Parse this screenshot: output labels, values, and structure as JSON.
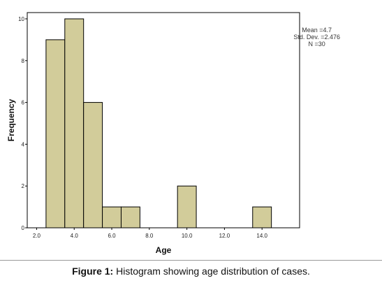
{
  "chart_data": {
    "type": "bar",
    "subtype": "histogram",
    "xlabel": "Age",
    "ylabel": "Frequency",
    "x_ticks": [
      "2.0",
      "4.0",
      "6.0",
      "8.0",
      "10.0",
      "12.0",
      "14.0"
    ],
    "y_ticks": [
      "0",
      "2",
      "4",
      "6",
      "8",
      "10"
    ],
    "xlim": [
      1.5,
      16.0
    ],
    "ylim": [
      0,
      10.3
    ],
    "bin_width": 1,
    "bins": [
      {
        "start": 2.5,
        "end": 3.5,
        "count": 9
      },
      {
        "start": 3.5,
        "end": 4.5,
        "count": 10
      },
      {
        "start": 4.5,
        "end": 5.5,
        "count": 6
      },
      {
        "start": 5.5,
        "end": 6.5,
        "count": 1
      },
      {
        "start": 6.5,
        "end": 7.5,
        "count": 1
      },
      {
        "start": 9.5,
        "end": 10.5,
        "count": 2
      },
      {
        "start": 13.5,
        "end": 14.5,
        "count": 1
      }
    ],
    "grid": false,
    "bar_color": "#d2cc9a",
    "stats": {
      "mean": "Mean =4.7",
      "std_dev": "Std. Dev. =2.476",
      "n": "N =30"
    }
  },
  "caption": {
    "label": "Figure 1:",
    "text": " Histogram showing age distribution of cases."
  }
}
